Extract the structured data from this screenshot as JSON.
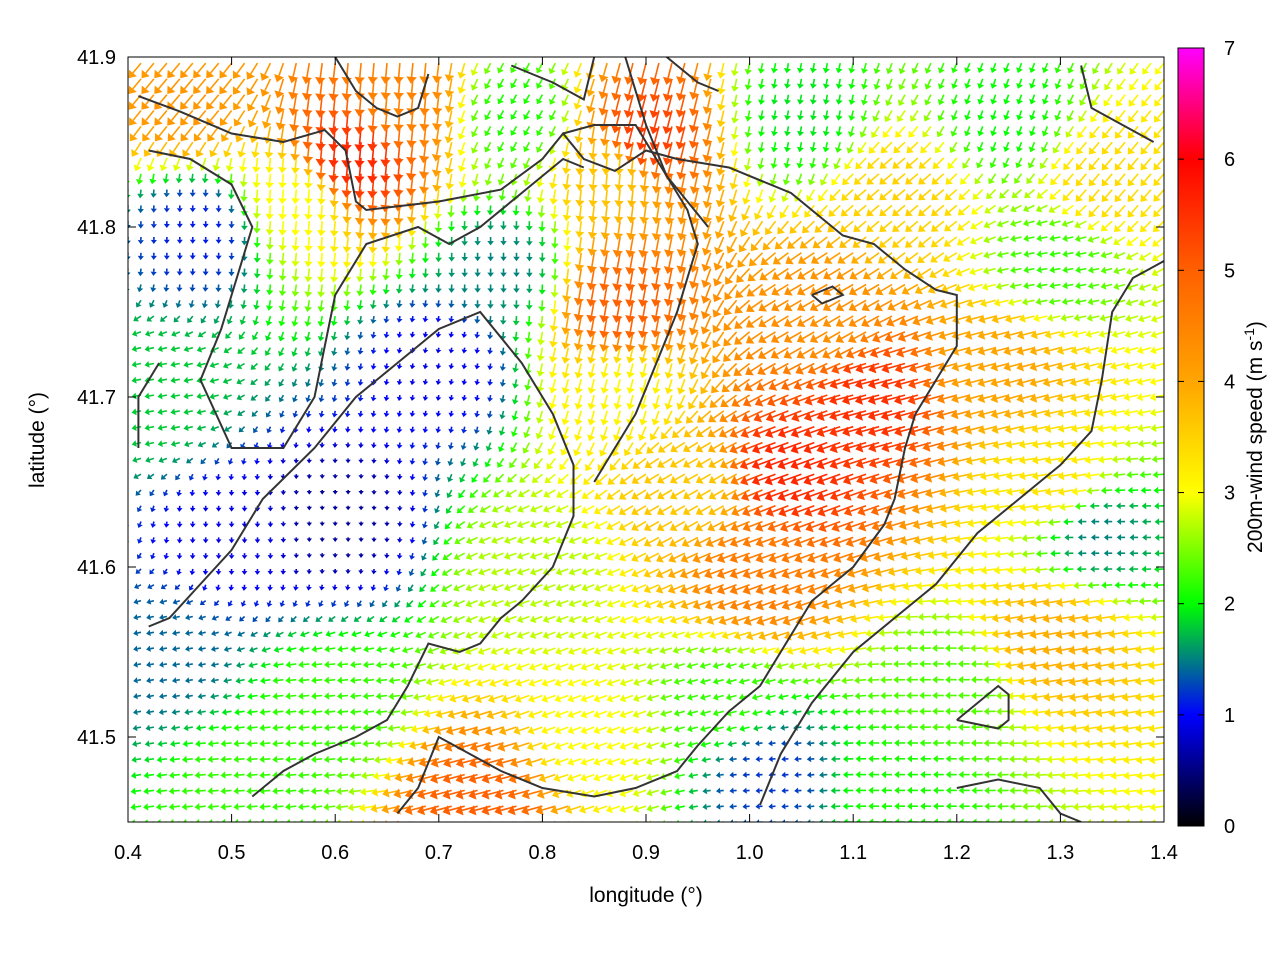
{
  "chart_data": {
    "type": "vector-field",
    "xlabel": "longitude (°)",
    "ylabel": "latitude (°)",
    "xlim": [
      0.4,
      1.4
    ],
    "ylim": [
      41.45,
      41.9
    ],
    "xticks": [
      0.4,
      0.5,
      0.6,
      0.7,
      0.8,
      0.9,
      1.0,
      1.1,
      1.2,
      1.3,
      1.4
    ],
    "xtick_labels": [
      "0.4",
      "0.5",
      "0.6",
      "0.7",
      "0.8",
      "0.9",
      "1.0",
      "1.1",
      "1.2",
      "1.3",
      "1.4"
    ],
    "yticks": [
      41.5,
      41.6,
      41.7,
      41.8,
      41.9
    ],
    "ytick_labels": [
      "41.5",
      "41.6",
      "41.7",
      "41.8",
      "41.9"
    ],
    "colorbar": {
      "label_main": "200m-wind speed (m s",
      "label_sup": "-1",
      "label_close": ")",
      "range": [
        0,
        7
      ],
      "ticks": [
        0,
        1,
        2,
        3,
        4,
        5,
        6,
        7
      ],
      "tick_labels": [
        "0",
        "1",
        "2",
        "3",
        "4",
        "5",
        "6",
        "7"
      ],
      "palette": [
        {
          "v": 0,
          "color": "#000000"
        },
        {
          "v": 1,
          "color": "#0000ff"
        },
        {
          "v": 1.5,
          "color": "#008080"
        },
        {
          "v": 2,
          "color": "#00ff00"
        },
        {
          "v": 3,
          "color": "#ffff00"
        },
        {
          "v": 4,
          "color": "#ffa500"
        },
        {
          "v": 5,
          "color": "#ff6000"
        },
        {
          "v": 6,
          "color": "#ff0000"
        },
        {
          "v": 7,
          "color": "#ff00ff"
        }
      ]
    },
    "grid": false,
    "arrow_grid": {
      "lon_step": 0.0125,
      "lat_step": 0.0093
    },
    "wind_regions": [
      {
        "lon": 0.47,
        "lat": 41.8,
        "speed": 1.1,
        "dir_deg": 270
      },
      {
        "lon": 0.5,
        "lat": 41.62,
        "speed": 0.9,
        "dir_deg": 270
      },
      {
        "lon": 0.6,
        "lat": 41.63,
        "speed": 0.6,
        "dir_deg": 270
      },
      {
        "lon": 0.7,
        "lat": 41.72,
        "speed": 0.9,
        "dir_deg": 260
      },
      {
        "lon": 0.76,
        "lat": 41.78,
        "speed": 1.5,
        "dir_deg": 270
      },
      {
        "lon": 0.44,
        "lat": 41.55,
        "speed": 1.4,
        "dir_deg": 190
      },
      {
        "lon": 0.43,
        "lat": 41.7,
        "speed": 1.8,
        "dir_deg": 190
      },
      {
        "lon": 0.6,
        "lat": 41.52,
        "speed": 2.2,
        "dir_deg": 185
      },
      {
        "lon": 0.52,
        "lat": 41.47,
        "speed": 2.2,
        "dir_deg": 185
      },
      {
        "lon": 0.62,
        "lat": 41.85,
        "speed": 5.6,
        "dir_deg": 265
      },
      {
        "lon": 0.66,
        "lat": 41.88,
        "speed": 4.5,
        "dir_deg": 265
      },
      {
        "lon": 0.46,
        "lat": 41.88,
        "speed": 4.2,
        "dir_deg": 230
      },
      {
        "lon": 0.56,
        "lat": 41.82,
        "speed": 3.0,
        "dir_deg": 265
      },
      {
        "lon": 0.78,
        "lat": 41.87,
        "speed": 2.1,
        "dir_deg": 240
      },
      {
        "lon": 0.87,
        "lat": 41.84,
        "speed": 3.6,
        "dir_deg": 265
      },
      {
        "lon": 0.9,
        "lat": 41.86,
        "speed": 5.4,
        "dir_deg": 255
      },
      {
        "lon": 0.88,
        "lat": 41.76,
        "speed": 5.0,
        "dir_deg": 260
      },
      {
        "lon": 0.88,
        "lat": 41.71,
        "speed": 3.1,
        "dir_deg": 255
      },
      {
        "lon": 0.8,
        "lat": 41.6,
        "speed": 2.7,
        "dir_deg": 200
      },
      {
        "lon": 0.95,
        "lat": 41.65,
        "speed": 3.6,
        "dir_deg": 210
      },
      {
        "lon": 1.02,
        "lat": 41.6,
        "speed": 4.6,
        "dir_deg": 200
      },
      {
        "lon": 1.05,
        "lat": 41.66,
        "speed": 5.6,
        "dir_deg": 200
      },
      {
        "lon": 1.13,
        "lat": 41.7,
        "speed": 5.5,
        "dir_deg": 195
      },
      {
        "lon": 1.08,
        "lat": 41.75,
        "speed": 4.3,
        "dir_deg": 210
      },
      {
        "lon": 1.15,
        "lat": 41.82,
        "speed": 3.5,
        "dir_deg": 220
      },
      {
        "lon": 1.25,
        "lat": 41.72,
        "speed": 4.0,
        "dir_deg": 195
      },
      {
        "lon": 1.3,
        "lat": 41.65,
        "speed": 3.3,
        "dir_deg": 190
      },
      {
        "lon": 1.3,
        "lat": 41.56,
        "speed": 3.9,
        "dir_deg": 190
      },
      {
        "lon": 1.34,
        "lat": 41.62,
        "speed": 1.5,
        "dir_deg": 180
      },
      {
        "lon": 1.2,
        "lat": 41.53,
        "speed": 2.3,
        "dir_deg": 180
      },
      {
        "lon": 1.15,
        "lat": 41.47,
        "speed": 2.1,
        "dir_deg": 180
      },
      {
        "lon": 1.02,
        "lat": 41.48,
        "speed": 1.2,
        "dir_deg": 185
      },
      {
        "lon": 0.98,
        "lat": 41.52,
        "speed": 2.2,
        "dir_deg": 195
      },
      {
        "lon": 0.75,
        "lat": 41.46,
        "speed": 5.0,
        "dir_deg": 195
      },
      {
        "lon": 0.86,
        "lat": 41.5,
        "speed": 3.0,
        "dir_deg": 200
      },
      {
        "lon": 1.35,
        "lat": 41.83,
        "speed": 3.4,
        "dir_deg": 230
      },
      {
        "lon": 1.25,
        "lat": 41.87,
        "speed": 2.0,
        "dir_deg": 250
      },
      {
        "lon": 1.05,
        "lat": 41.87,
        "speed": 1.9,
        "dir_deg": 260
      },
      {
        "lon": 1.3,
        "lat": 41.78,
        "speed": 2.2,
        "dir_deg": 190
      }
    ],
    "contours": [
      [
        [
          0.41,
          41.877
        ],
        [
          0.45,
          41.868
        ],
        [
          0.5,
          41.855
        ],
        [
          0.55,
          41.85
        ],
        [
          0.59,
          41.857
        ],
        [
          0.61,
          41.845
        ],
        [
          0.62,
          41.815
        ],
        [
          0.63,
          41.81
        ],
        [
          0.7,
          41.815
        ],
        [
          0.76,
          41.822
        ],
        [
          0.8,
          41.84
        ],
        [
          0.82,
          41.855
        ],
        [
          0.84,
          41.84
        ],
        [
          0.87,
          41.833
        ],
        [
          0.9,
          41.845
        ],
        [
          0.93,
          41.84
        ],
        [
          0.98,
          41.835
        ],
        [
          1.04,
          41.82
        ],
        [
          1.09,
          41.795
        ],
        [
          1.12,
          41.79
        ],
        [
          1.15,
          41.775
        ],
        [
          1.18,
          41.763
        ],
        [
          1.2,
          41.76
        ],
        [
          1.2,
          41.73
        ],
        [
          1.18,
          41.71
        ],
        [
          1.16,
          41.69
        ],
        [
          1.15,
          41.67
        ],
        [
          1.14,
          41.64
        ],
        [
          1.13,
          41.625
        ],
        [
          1.1,
          41.6
        ],
        [
          1.08,
          41.59
        ],
        [
          1.06,
          41.58
        ],
        [
          1.03,
          41.55
        ],
        [
          1.01,
          41.53
        ],
        [
          0.98,
          41.515
        ],
        [
          0.95,
          41.495
        ],
        [
          0.93,
          41.48
        ],
        [
          0.89,
          41.47
        ],
        [
          0.85,
          41.465
        ],
        [
          0.8,
          41.47
        ],
        [
          0.76,
          41.48
        ],
        [
          0.73,
          41.49
        ],
        [
          0.7,
          41.5
        ],
        [
          0.68,
          41.47
        ],
        [
          0.66,
          41.455
        ]
      ],
      [
        [
          0.42,
          41.845
        ],
        [
          0.46,
          41.84
        ],
        [
          0.5,
          41.825
        ],
        [
          0.52,
          41.8
        ],
        [
          0.5,
          41.76
        ],
        [
          0.49,
          41.74
        ],
        [
          0.47,
          41.71
        ],
        [
          0.5,
          41.67
        ],
        [
          0.55,
          41.67
        ],
        [
          0.58,
          41.7
        ],
        [
          0.59,
          41.73
        ],
        [
          0.6,
          41.76
        ],
        [
          0.63,
          41.79
        ],
        [
          0.68,
          41.8
        ],
        [
          0.71,
          41.79
        ],
        [
          0.74,
          41.8
        ],
        [
          0.78,
          41.82
        ],
        [
          0.82,
          41.84
        ],
        [
          0.84,
          41.835
        ]
      ],
      [
        [
          0.42,
          41.565
        ],
        [
          0.44,
          41.57
        ],
        [
          0.47,
          41.59
        ],
        [
          0.5,
          41.61
        ],
        [
          0.53,
          41.64
        ],
        [
          0.58,
          41.67
        ],
        [
          0.62,
          41.7
        ],
        [
          0.66,
          41.72
        ],
        [
          0.7,
          41.74
        ],
        [
          0.74,
          41.75
        ],
        [
          0.78,
          41.72
        ],
        [
          0.81,
          41.69
        ],
        [
          0.83,
          41.66
        ],
        [
          0.83,
          41.63
        ],
        [
          0.81,
          41.6
        ],
        [
          0.78,
          41.58
        ],
        [
          0.76,
          41.57
        ],
        [
          0.74,
          41.555
        ],
        [
          0.72,
          41.55
        ],
        [
          0.69,
          41.555
        ],
        [
          0.67,
          41.53
        ],
        [
          0.65,
          41.51
        ],
        [
          0.62,
          41.5
        ],
        [
          0.6,
          41.495
        ],
        [
          0.58,
          41.49
        ],
        [
          0.55,
          41.48
        ],
        [
          0.52,
          41.465
        ]
      ],
      [
        [
          0.82,
          41.855
        ],
        [
          0.85,
          41.86
        ],
        [
          0.89,
          41.86
        ],
        [
          0.92,
          41.83
        ],
        [
          0.94,
          41.81
        ],
        [
          0.95,
          41.79
        ],
        [
          0.94,
          41.77
        ],
        [
          0.93,
          41.75
        ],
        [
          0.91,
          41.72
        ],
        [
          0.89,
          41.69
        ],
        [
          0.87,
          41.67
        ],
        [
          0.85,
          41.65
        ]
      ],
      [
        [
          0.88,
          41.9
        ],
        [
          0.9,
          41.86
        ],
        [
          0.92,
          41.83
        ],
        [
          0.96,
          41.8
        ]
      ],
      [
        [
          0.43,
          41.72
        ],
        [
          0.41,
          41.7
        ],
        [
          0.41,
          41.67
        ]
      ],
      [
        [
          1.01,
          41.46
        ],
        [
          1.03,
          41.49
        ],
        [
          1.06,
          41.52
        ],
        [
          1.1,
          41.55
        ],
        [
          1.14,
          41.57
        ],
        [
          1.18,
          41.59
        ],
        [
          1.22,
          41.62
        ],
        [
          1.26,
          41.64
        ],
        [
          1.3,
          41.66
        ],
        [
          1.33,
          41.68
        ],
        [
          1.34,
          41.71
        ],
        [
          1.35,
          41.75
        ],
        [
          1.37,
          41.77
        ],
        [
          1.4,
          41.78
        ]
      ],
      [
        [
          1.2,
          41.51
        ],
        [
          1.24,
          41.505
        ],
        [
          1.25,
          41.51
        ],
        [
          1.25,
          41.525
        ],
        [
          1.24,
          41.53
        ],
        [
          1.22,
          41.52
        ],
        [
          1.2,
          41.51
        ]
      ],
      [
        [
          1.06,
          41.76
        ],
        [
          1.08,
          41.765
        ],
        [
          1.09,
          41.76
        ],
        [
          1.07,
          41.755
        ],
        [
          1.06,
          41.76
        ]
      ],
      [
        [
          1.2,
          41.47
        ],
        [
          1.24,
          41.475
        ],
        [
          1.28,
          41.47
        ],
        [
          1.3,
          41.455
        ],
        [
          1.32,
          41.45
        ]
      ],
      [
        [
          0.6,
          41.9
        ],
        [
          0.62,
          41.88
        ],
        [
          0.64,
          41.87
        ],
        [
          0.66,
          41.865
        ],
        [
          0.68,
          41.87
        ],
        [
          0.69,
          41.89
        ]
      ],
      [
        [
          0.77,
          41.895
        ],
        [
          0.79,
          41.89
        ],
        [
          0.81,
          41.885
        ],
        [
          0.84,
          41.875
        ],
        [
          0.85,
          41.9
        ]
      ],
      [
        [
          1.32,
          41.895
        ],
        [
          1.33,
          41.87
        ],
        [
          1.36,
          41.86
        ],
        [
          1.39,
          41.85
        ]
      ],
      [
        [
          0.92,
          41.9
        ],
        [
          0.95,
          41.885
        ],
        [
          0.97,
          41.88
        ]
      ]
    ]
  }
}
